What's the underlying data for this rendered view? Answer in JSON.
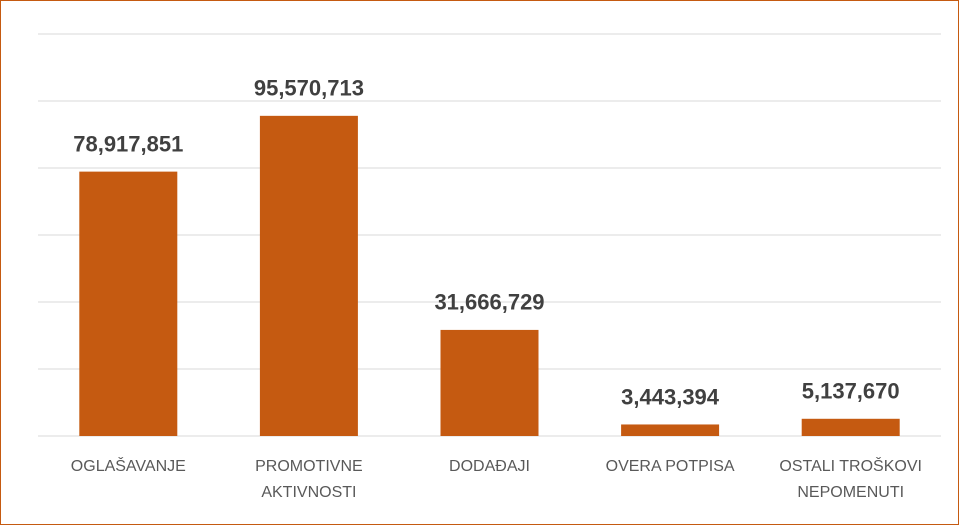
{
  "chart_data": {
    "type": "bar",
    "categories": [
      "OGLAŠAVANJE",
      "PROMOTIVNE AKTIVNOSTI",
      "DODAĐAJI",
      "OVERA POTPISA",
      "OSTALI TROŠKOVI NEPOMENUTI"
    ],
    "values": [
      78917851,
      95570713,
      31666729,
      3443394,
      5137670
    ],
    "value_labels": [
      "78,917,851",
      "95,570,713",
      "31,666,729",
      "3,443,394",
      "5,137,670"
    ],
    "color": "#c55a11",
    "ylim": [
      0,
      120000000
    ],
    "yticks": [
      0,
      20000000,
      40000000,
      60000000,
      80000000,
      100000000,
      120000000
    ],
    "grid": true
  }
}
